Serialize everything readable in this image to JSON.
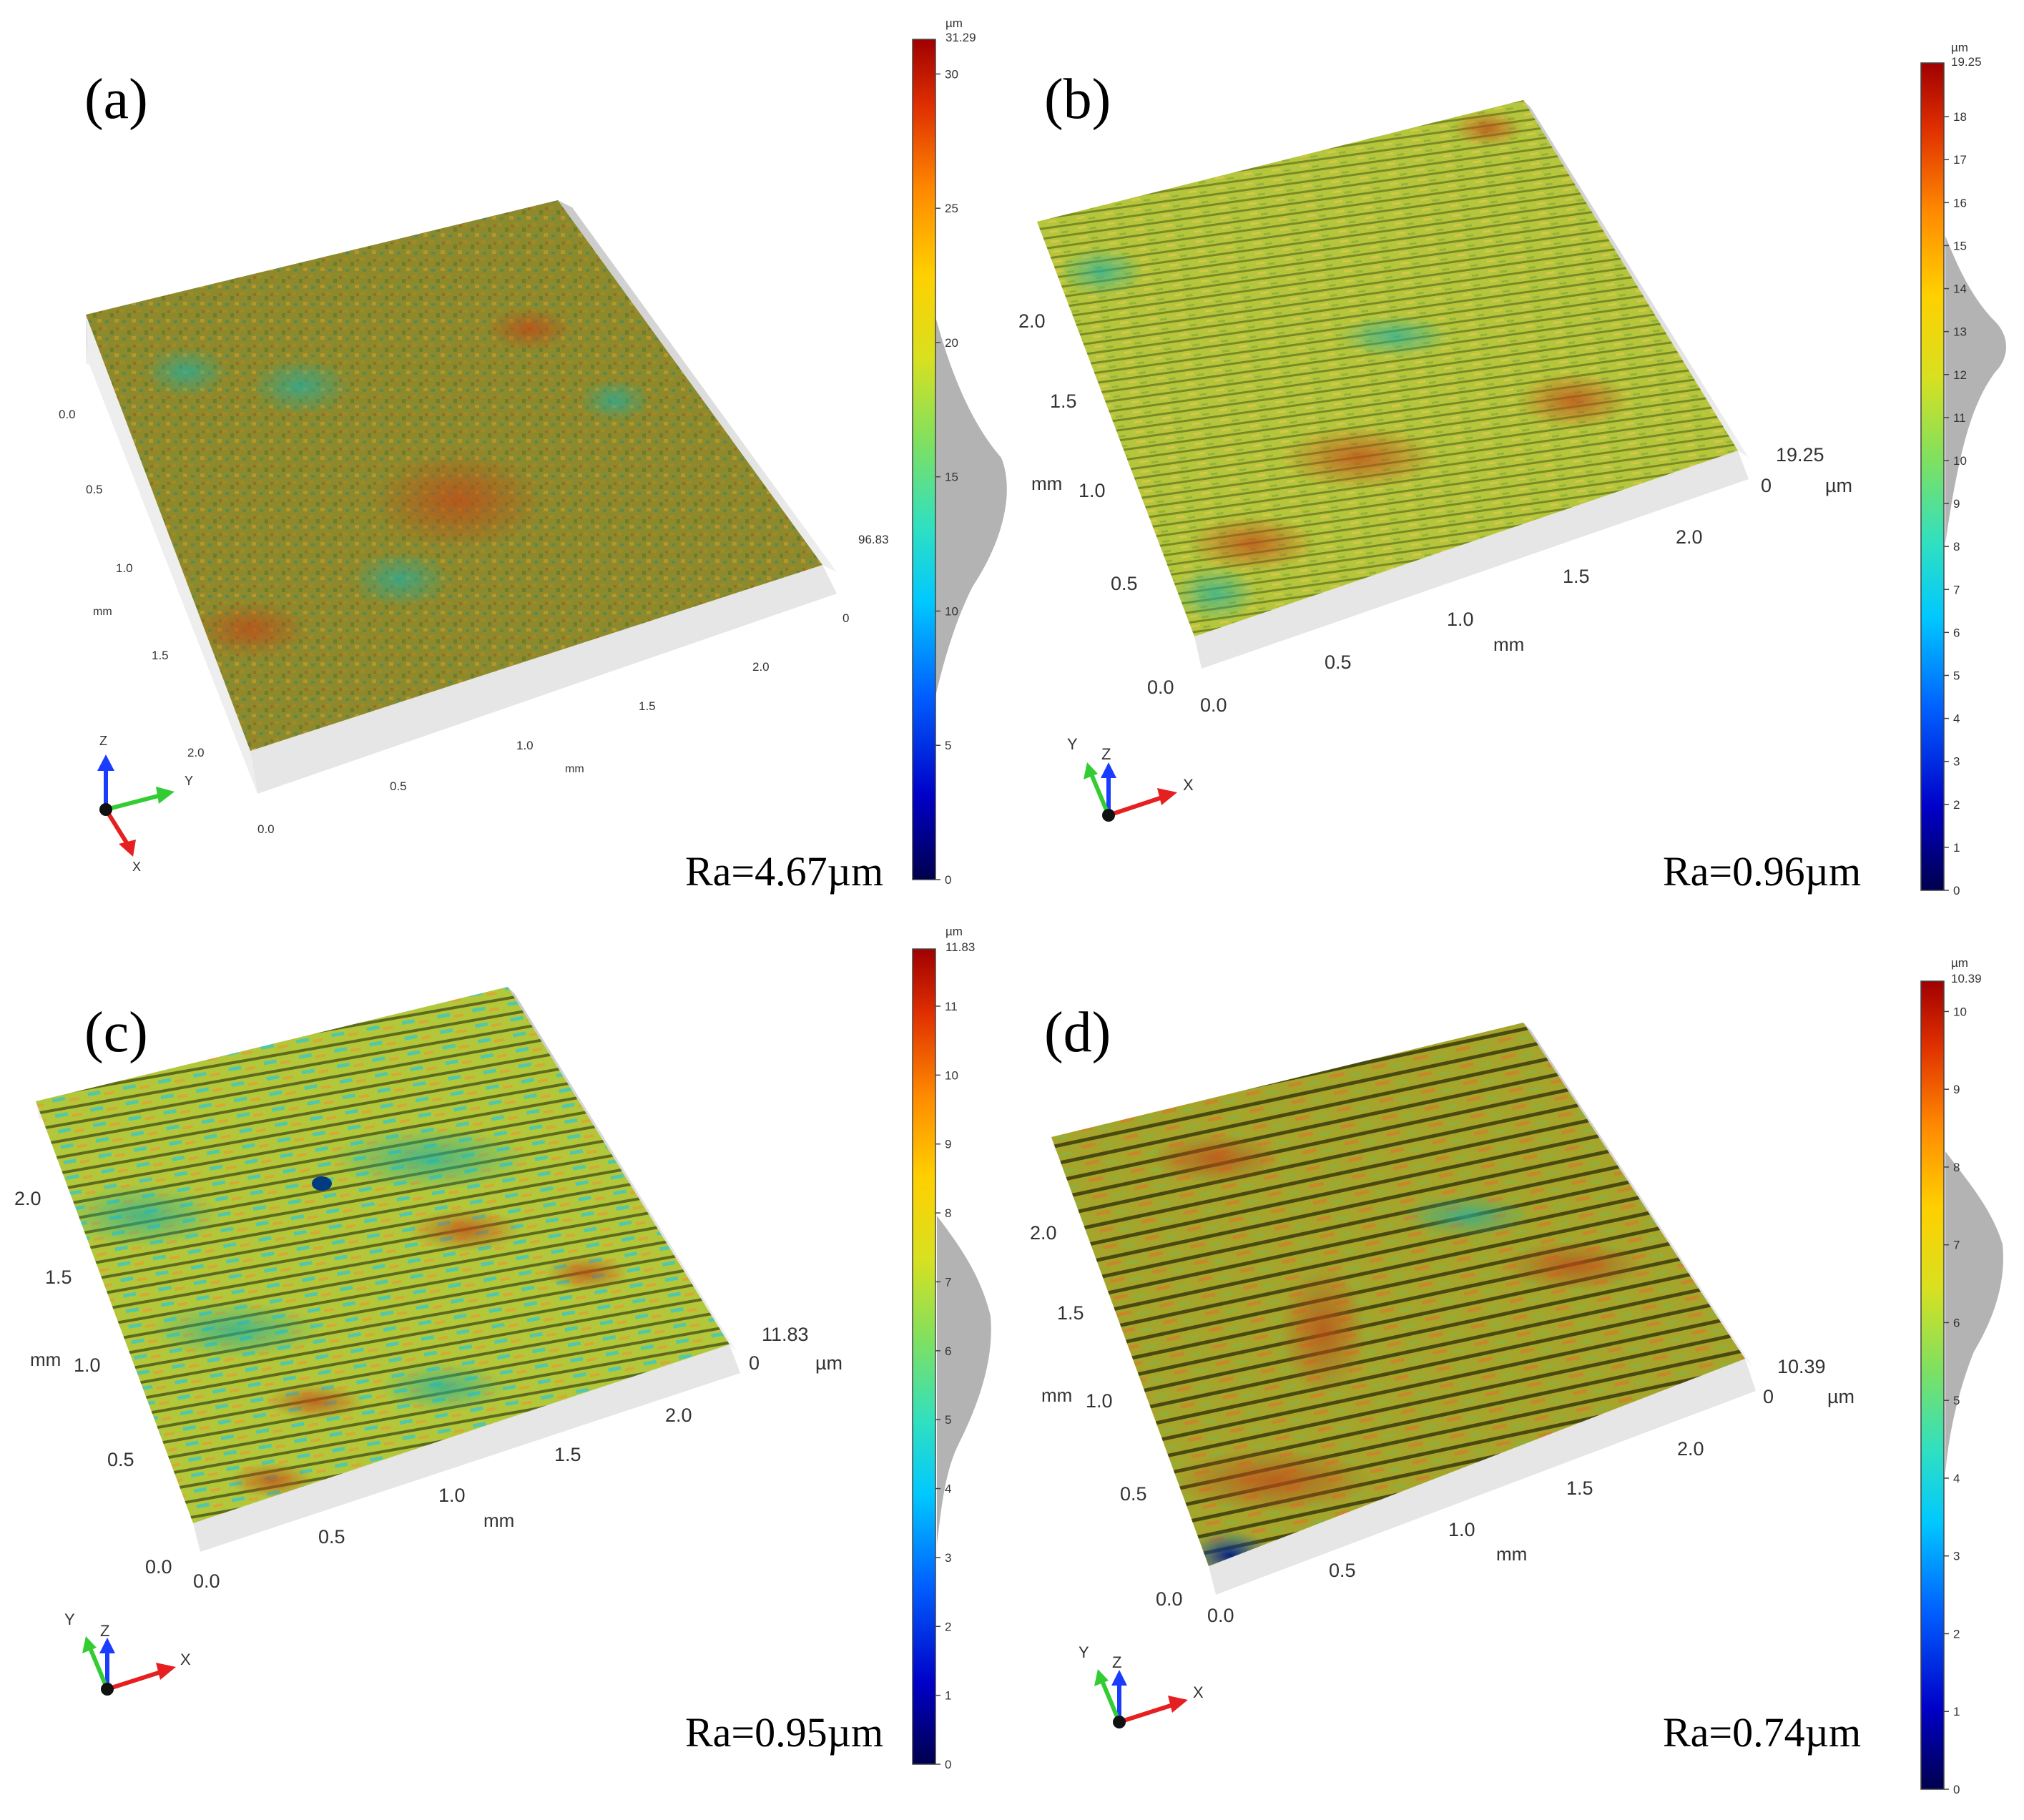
{
  "figure": {
    "panels": [
      {
        "id": "a",
        "label": "(a)",
        "ra": "Ra=4.67µm",
        "colorbar": {
          "unit": "µm",
          "max_label": "31.29",
          "max": 31.29,
          "ticks": [
            "0",
            "5",
            "10",
            "15",
            "20",
            "25",
            "30"
          ]
        },
        "axis_x_ticks": [
          "0.0",
          "0.5",
          "1.0",
          "1.5",
          "2.0"
        ],
        "axis_y_ticks": [
          "0.0",
          "0.5",
          "1.0",
          "1.5",
          "2.0"
        ],
        "axis_x_unit": "mm",
        "axis_y_unit": "mm",
        "z_labels": [
          "96.83",
          "0"
        ],
        "z_unit": "",
        "triad": {
          "z": "Z",
          "x": "X",
          "y": "Y"
        }
      },
      {
        "id": "b",
        "label": "(b)",
        "ra": "Ra=0.96µm",
        "colorbar": {
          "unit": "µm",
          "max_label": "19.25",
          "max": 19.25,
          "ticks": [
            "0",
            "1",
            "2",
            "3",
            "4",
            "5",
            "6",
            "7",
            "8",
            "9",
            "10",
            "11",
            "12",
            "13",
            "14",
            "15",
            "16",
            "17",
            "18"
          ]
        },
        "axis_x_ticks": [
          "0.0",
          "0.5",
          "1.0",
          "1.5",
          "2.0"
        ],
        "axis_y_ticks": [
          "0.0",
          "0.5",
          "1.0",
          "1.5",
          "2.0"
        ],
        "axis_x_unit": "mm",
        "axis_y_unit": "mm",
        "z_labels": [
          "19.25",
          "0"
        ],
        "z_unit": "µm",
        "triad": {
          "z": "Z",
          "x": "X",
          "y": "Y"
        }
      },
      {
        "id": "c",
        "label": "(c)",
        "ra": "Ra=0.95µm",
        "colorbar": {
          "unit": "µm",
          "max_label": "11.83",
          "max": 11.83,
          "ticks": [
            "0",
            "1",
            "2",
            "3",
            "4",
            "5",
            "6",
            "7",
            "8",
            "9",
            "10",
            "11"
          ]
        },
        "axis_x_ticks": [
          "0.0",
          "0.5",
          "1.0",
          "1.5",
          "2.0"
        ],
        "axis_y_ticks": [
          "0.0",
          "0.5",
          "1.0",
          "1.5",
          "2.0"
        ],
        "axis_x_unit": "mm",
        "axis_y_unit": "mm",
        "z_labels": [
          "11.83",
          "0"
        ],
        "z_unit": "µm",
        "triad": {
          "z": "Z",
          "x": "X",
          "y": "Y"
        }
      },
      {
        "id": "d",
        "label": "(d)",
        "ra": "Ra=0.74µm",
        "colorbar": {
          "unit": "µm",
          "max_label": "10.39",
          "max": 10.39,
          "ticks": [
            "0",
            "1",
            "2",
            "3",
            "4",
            "5",
            "6",
            "7",
            "8",
            "9",
            "10"
          ]
        },
        "axis_x_ticks": [
          "0.0",
          "0.5",
          "1.0",
          "1.5",
          "2.0"
        ],
        "axis_y_ticks": [
          "0.0",
          "0.5",
          "1.0",
          "1.5",
          "2.0"
        ],
        "axis_x_unit": "mm",
        "axis_y_unit": "mm",
        "z_labels": [
          "10.39",
          "0"
        ],
        "z_unit": "µm",
        "triad": {
          "z": "Z",
          "x": "X",
          "y": "Y"
        }
      }
    ],
    "colors": {
      "jet": [
        "#00004d",
        "#0000c8",
        "#0060ff",
        "#00c8ff",
        "#30e0c0",
        "#7fe060",
        "#d8e020",
        "#ffd000",
        "#ff8a00",
        "#e03000",
        "#a00000"
      ],
      "surface_a": "#8f8a2a",
      "surface_b": "#b8c83a",
      "surface_c": "#a8c03a",
      "surface_d": "#9a9a2a",
      "histogram": "#b3b3b3",
      "triad_x": "#e62020",
      "triad_y": "#33cc33",
      "triad_z": "#1a3cff"
    }
  }
}
